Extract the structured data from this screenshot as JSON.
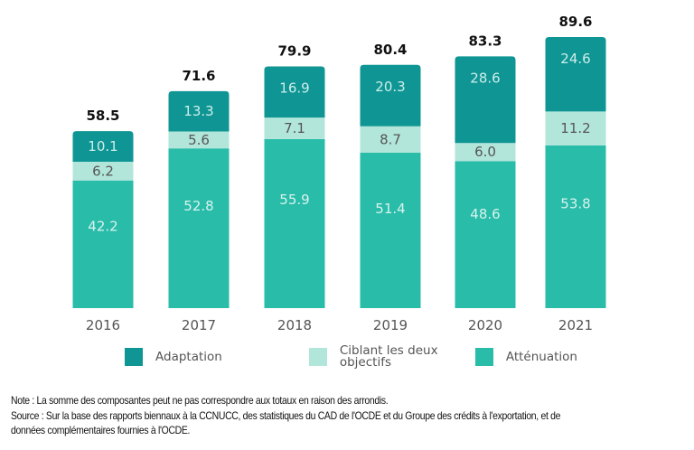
{
  "chart_data": {
    "type": "bar",
    "stacked": true,
    "categories": [
      "2016",
      "2017",
      "2018",
      "2019",
      "2020",
      "2021"
    ],
    "series": [
      {
        "name": "Atténuation",
        "color": "#29bca9",
        "label_color": "#d8f3ee",
        "values": [
          42.2,
          52.8,
          55.9,
          51.4,
          48.6,
          53.8
        ]
      },
      {
        "name": "Ciblant les deux objectifs",
        "color": "#b3e6da",
        "label_color": "#555555",
        "values": [
          6.2,
          5.6,
          7.1,
          8.7,
          6.0,
          11.2
        ]
      },
      {
        "name": "Adaptation",
        "color": "#0f9694",
        "label_color": "#cdeeea",
        "values": [
          10.1,
          13.3,
          16.9,
          20.3,
          28.6,
          24.6
        ]
      }
    ],
    "totals": [
      58.5,
      71.6,
      79.9,
      80.4,
      83.3,
      89.6
    ],
    "title": "",
    "xlabel": "",
    "ylabel": "",
    "ylim": [
      0,
      89.6
    ],
    "grid": false,
    "legend_position": "bottom"
  },
  "legend": [
    {
      "label": "Adaptation",
      "color": "#0f9694"
    },
    {
      "label": "Ciblant les deux objectifs",
      "color": "#b3e6da"
    },
    {
      "label": "Atténuation",
      "color": "#29bca9"
    }
  ],
  "notes": {
    "note": "Note : La somme des composantes peut ne pas correspondre aux totaux en raison des arrondis.",
    "source_line1": "Source : Sur la base des rapports biennaux à la CCNUCC, des statistiques du CAD de l'OCDE et du Groupe des crédits à l'exportation, et de",
    "source_line2": "données complémentaires fournies à l'OCDE."
  }
}
